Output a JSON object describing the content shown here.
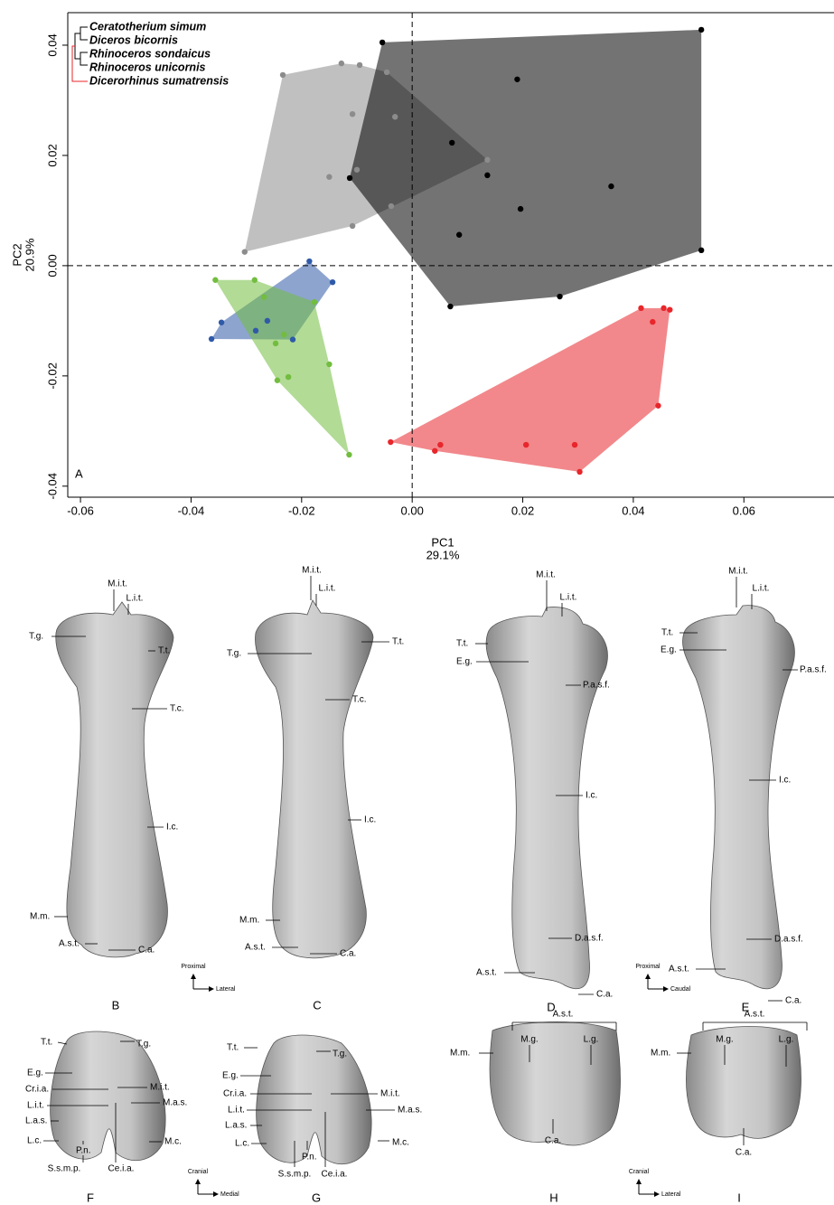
{
  "chart_data": {
    "type": "scatter",
    "panel_label": "A",
    "xlabel": "PC1",
    "xlabel_variance": "29.1%",
    "ylabel": "PC2",
    "ylabel_variance": "20.9%",
    "xlim": [
      -0.0623,
      0.0763
    ],
    "ylim": [
      -0.042,
      0.0459
    ],
    "xticks": [
      -0.06,
      -0.04,
      -0.02,
      {
        "value": 0,
        "label": "0.00"
      },
      0.02,
      0.04,
      0.06
    ],
    "yticks": [
      -0.04,
      -0.02,
      {
        "value": 0,
        "label": "0.00"
      },
      0.02,
      0.04
    ],
    "reference_lines": {
      "x": 0,
      "y": 0
    },
    "convex_hulls": true,
    "series": [
      {
        "name": "Ceratotherium simum",
        "color": "#8c8c8c",
        "x": [
          -0.0234,
          -0.0128,
          -0.0095,
          -0.0046,
          -0.0108,
          -0.0031,
          0.0136,
          -0.01,
          -0.015,
          -0.0038,
          -0.0108,
          -0.0303
        ],
        "values": [
          0.0346,
          0.0367,
          0.0364,
          0.0351,
          0.0275,
          0.027,
          0.0192,
          0.0174,
          0.0161,
          0.0108,
          0.0072,
          0.0025
        ]
      },
      {
        "name": "Diceros bicornis",
        "color": "#000000",
        "x": [
          -0.0054,
          0.0523,
          0.019,
          0.0072,
          0.0136,
          -0.0113,
          0.036,
          0.0196,
          0.0085,
          0.0523,
          0.0267,
          0.0069
        ],
        "values": [
          0.0405,
          0.0428,
          0.0338,
          0.0223,
          0.0164,
          0.0159,
          0.0144,
          0.0103,
          0.0056,
          0.0028,
          -0.0056,
          -0.0074
        ]
      },
      {
        "name": "Rhinoceros sondaicus",
        "color": "#2f5aa8",
        "x": [
          -0.0186,
          -0.0144,
          -0.0345,
          -0.0262,
          -0.0283,
          -0.0216,
          -0.0363
        ],
        "values": [
          0.0008,
          -0.003,
          -0.0103,
          -0.01,
          -0.0118,
          -0.0134,
          -0.0133
        ]
      },
      {
        "name": "Rhinoceros unicornis",
        "color": "#72bd3f",
        "x": [
          -0.0356,
          -0.0285,
          -0.0268,
          -0.0177,
          -0.0232,
          -0.0247,
          -0.015,
          -0.0224,
          -0.0244,
          -0.0114
        ],
        "values": [
          -0.0026,
          -0.0026,
          -0.0057,
          -0.0066,
          -0.0125,
          -0.0141,
          -0.0179,
          -0.0202,
          -0.0208,
          -0.0343
        ]
      },
      {
        "name": "Dicerorhinus sumatrensis",
        "color": "#e8262b",
        "x": [
          0.0414,
          0.0455,
          0.0466,
          0.0435,
          0.0445,
          -0.0039,
          0.0051,
          0.0041,
          0.0206,
          0.0294,
          0.0303
        ],
        "values": [
          -0.0077,
          -0.0077,
          -0.008,
          -0.0102,
          -0.0254,
          -0.032,
          -0.0325,
          -0.0336,
          -0.0325,
          -0.0325,
          -0.0374
        ]
      }
    ]
  },
  "panels": [
    {
      "letter": "B",
      "labels": [
        "M.i.t.",
        "L.i.t.",
        "T.g.",
        "T.t.",
        "T.c.",
        "I.c.",
        "M.m.",
        "A.s.t.",
        "C.a."
      ]
    },
    {
      "letter": "C",
      "labels": [
        "M.i.t.",
        "L.i.t.",
        "T.g.",
        "T.t.",
        "T.c.",
        "I.c.",
        "M.m.",
        "A.s.t.",
        "C.a."
      ]
    },
    {
      "letter": "D",
      "labels": [
        "M.i.t.",
        "L.i.t.",
        "T.t.",
        "E.g.",
        "P.a.s.f.",
        "I.c.",
        "D.a.s.f.",
        "A.s.t.",
        "C.a."
      ]
    },
    {
      "letter": "E",
      "labels": [
        "M.i.t.",
        "L.i.t.",
        "T.t.",
        "E.g.",
        "P.a.s.f.",
        "I.c.",
        "D.a.s.f.",
        "A.s.t.",
        "C.a."
      ]
    },
    {
      "letter": "F",
      "labels": [
        "T.t.",
        "T.g.",
        "E.g.",
        "Cr.i.a.",
        "M.i.t.",
        "L.i.t.",
        "M.a.s.",
        "L.a.s.",
        "L.c.",
        "M.c.",
        "P.n.",
        "S.s.m.p.",
        "Ce.i.a."
      ]
    },
    {
      "letter": "G",
      "labels": [
        "T.t.",
        "T.g.",
        "E.g.",
        "Cr.i.a.",
        "M.i.t.",
        "L.i.t.",
        "M.a.s.",
        "L.a.s.",
        "L.c.",
        "M.c.",
        "P.n.",
        "S.s.m.p.",
        "Ce.i.a."
      ]
    },
    {
      "letter": "H",
      "labels": [
        "A.s.t.",
        "M.g.",
        "L.g.",
        "M.m.",
        "C.a."
      ]
    },
    {
      "letter": "I",
      "labels": [
        "A.s.t.",
        "M.g.",
        "L.g.",
        "M.m.",
        "C.a."
      ]
    }
  ],
  "orientations": [
    {
      "up": "Proximal",
      "right": "Lateral"
    },
    {
      "up": "Proximal",
      "right": "Caudal"
    },
    {
      "up": "Cranial",
      "right": "Medial"
    },
    {
      "up": "Cranial",
      "right": "Lateral"
    }
  ]
}
